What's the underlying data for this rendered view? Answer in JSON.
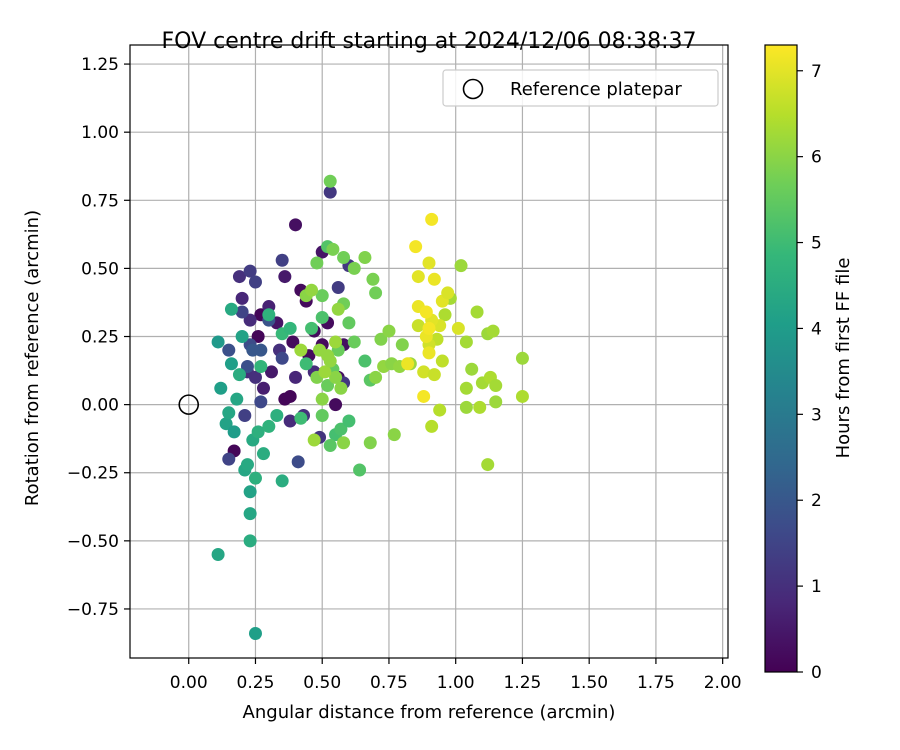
{
  "chart_data": {
    "type": "scatter",
    "title": "FOV centre drift starting at 2024/12/06 08:38:37",
    "xlabel": "Angular distance from reference (arcmin)",
    "ylabel": "Rotation from reference (arcmin)",
    "xlim": [
      -0.22,
      2.02
    ],
    "ylim": [
      -0.93,
      1.32
    ],
    "xticks": [
      0.0,
      0.25,
      0.5,
      0.75,
      1.0,
      1.25,
      1.5,
      1.75,
      2.0
    ],
    "xtick_labels": [
      "0.00",
      "0.25",
      "0.50",
      "0.75",
      "1.00",
      "1.25",
      "1.50",
      "1.75",
      "2.00"
    ],
    "yticks": [
      -0.75,
      -0.5,
      -0.25,
      0.0,
      0.25,
      0.5,
      0.75,
      1.0,
      1.25
    ],
    "ytick_labels": [
      "−0.75",
      "−0.50",
      "−0.25",
      "0.00",
      "0.25",
      "0.50",
      "0.75",
      "1.00",
      "1.25"
    ],
    "grid": true,
    "legend": {
      "position": "top-right",
      "entries": [
        "Reference platepar"
      ]
    },
    "reference": {
      "x": 0.0,
      "y": 0.0
    },
    "colorbar": {
      "label": "Hours from first FF file",
      "range": [
        0,
        7.3
      ],
      "ticks": [
        0,
        1,
        2,
        3,
        4,
        5,
        6,
        7
      ],
      "colormap": "viridis"
    },
    "colors": [
      "#440154",
      "#482878",
      "#3e4989",
      "#31688e",
      "#26828e",
      "#1f9e89",
      "#35b779",
      "#6ece58",
      "#b5de2b",
      "#fde725"
    ],
    "points": [
      {
        "x": 0.17,
        "y": -0.17,
        "h": 0.1
      },
      {
        "x": 0.26,
        "y": 0.25,
        "h": 0.1
      },
      {
        "x": 0.27,
        "y": 0.33,
        "h": 0.1
      },
      {
        "x": 0.36,
        "y": 0.02,
        "h": 0.1
      },
      {
        "x": 0.38,
        "y": 0.03,
        "h": 0.1
      },
      {
        "x": 0.39,
        "y": 0.23,
        "h": 0.2
      },
      {
        "x": 0.4,
        "y": 0.66,
        "h": 0.3
      },
      {
        "x": 0.42,
        "y": 0.42,
        "h": 0.2
      },
      {
        "x": 0.44,
        "y": 0.38,
        "h": 0.2
      },
      {
        "x": 0.45,
        "y": 0.18,
        "h": 0.2
      },
      {
        "x": 0.47,
        "y": 0.27,
        "h": 0.2
      },
      {
        "x": 0.5,
        "y": 0.22,
        "h": 0.2
      },
      {
        "x": 0.52,
        "y": 0.3,
        "h": 0.2
      },
      {
        "x": 0.55,
        "y": 0.0,
        "h": 0.2
      },
      {
        "x": 0.56,
        "y": 0.1,
        "h": 0.3
      },
      {
        "x": 0.58,
        "y": 0.22,
        "h": 0.3
      },
      {
        "x": 0.5,
        "y": 0.56,
        "h": 0.4
      },
      {
        "x": 0.36,
        "y": 0.47,
        "h": 0.5
      },
      {
        "x": 0.33,
        "y": 0.3,
        "h": 0.4
      },
      {
        "x": 0.31,
        "y": 0.12,
        "h": 0.5
      },
      {
        "x": 0.3,
        "y": 0.36,
        "h": 0.7
      },
      {
        "x": 0.28,
        "y": 0.06,
        "h": 0.6
      },
      {
        "x": 0.2,
        "y": 0.39,
        "h": 0.8
      },
      {
        "x": 0.22,
        "y": 0.12,
        "h": 0.9
      },
      {
        "x": 0.23,
        "y": 0.31,
        "h": 0.9
      },
      {
        "x": 0.19,
        "y": 0.47,
        "h": 1.0
      },
      {
        "x": 0.25,
        "y": 0.1,
        "h": 1.0
      },
      {
        "x": 0.34,
        "y": 0.2,
        "h": 1.0
      },
      {
        "x": 0.38,
        "y": -0.06,
        "h": 0.9
      },
      {
        "x": 0.4,
        "y": 0.1,
        "h": 0.8
      },
      {
        "x": 0.43,
        "y": -0.04,
        "h": 1.0
      },
      {
        "x": 0.47,
        "y": 0.12,
        "h": 0.9
      },
      {
        "x": 0.49,
        "y": -0.12,
        "h": 1.1
      },
      {
        "x": 0.53,
        "y": 0.78,
        "h": 1.2
      },
      {
        "x": 0.56,
        "y": 0.43,
        "h": 1.3
      },
      {
        "x": 0.58,
        "y": 0.08,
        "h": 1.2
      },
      {
        "x": 0.6,
        "y": 0.51,
        "h": 1.2
      },
      {
        "x": 0.35,
        "y": 0.53,
        "h": 1.4
      },
      {
        "x": 0.23,
        "y": 0.49,
        "h": 1.3
      },
      {
        "x": 0.25,
        "y": 0.45,
        "h": 1.4
      },
      {
        "x": 0.2,
        "y": 0.34,
        "h": 1.5
      },
      {
        "x": 0.21,
        "y": -0.04,
        "h": 1.4
      },
      {
        "x": 0.15,
        "y": -0.2,
        "h": 1.5
      },
      {
        "x": 0.27,
        "y": 0.01,
        "h": 1.6
      },
      {
        "x": 0.35,
        "y": 0.17,
        "h": 1.6
      },
      {
        "x": 0.41,
        "y": -0.21,
        "h": 1.7
      },
      {
        "x": 0.23,
        "y": 0.22,
        "h": 1.7
      },
      {
        "x": 0.22,
        "y": 0.14,
        "h": 1.8
      },
      {
        "x": 0.3,
        "y": 0.31,
        "h": 1.9
      },
      {
        "x": 0.15,
        "y": 0.2,
        "h": 1.8
      },
      {
        "x": 0.24,
        "y": 0.2,
        "h": 2.0
      },
      {
        "x": 0.27,
        "y": 0.2,
        "h": 2.0
      },
      {
        "x": 0.11,
        "y": 0.23,
        "h": 3.9
      },
      {
        "x": 0.12,
        "y": 0.06,
        "h": 4.1
      },
      {
        "x": 0.14,
        "y": -0.07,
        "h": 4.2
      },
      {
        "x": 0.15,
        "y": -0.03,
        "h": 4.3
      },
      {
        "x": 0.16,
        "y": 0.15,
        "h": 4.1
      },
      {
        "x": 0.16,
        "y": 0.35,
        "h": 4.4
      },
      {
        "x": 0.17,
        "y": -0.1,
        "h": 4.0
      },
      {
        "x": 0.18,
        "y": 0.02,
        "h": 4.3
      },
      {
        "x": 0.19,
        "y": 0.11,
        "h": 4.5
      },
      {
        "x": 0.2,
        "y": 0.25,
        "h": 4.2
      },
      {
        "x": 0.21,
        "y": -0.24,
        "h": 4.3
      },
      {
        "x": 0.22,
        "y": -0.22,
        "h": 4.4
      },
      {
        "x": 0.23,
        "y": -0.32,
        "h": 4.2
      },
      {
        "x": 0.23,
        "y": -0.4,
        "h": 4.3
      },
      {
        "x": 0.23,
        "y": -0.5,
        "h": 4.5
      },
      {
        "x": 0.11,
        "y": -0.55,
        "h": 4.3
      },
      {
        "x": 0.25,
        "y": -0.84,
        "h": 4.1
      },
      {
        "x": 0.25,
        "y": -0.27,
        "h": 4.6
      },
      {
        "x": 0.24,
        "y": -0.13,
        "h": 4.4
      },
      {
        "x": 0.26,
        "y": -0.1,
        "h": 4.6
      },
      {
        "x": 0.28,
        "y": -0.18,
        "h": 4.5
      },
      {
        "x": 0.3,
        "y": -0.08,
        "h": 4.7
      },
      {
        "x": 0.33,
        "y": -0.04,
        "h": 4.6
      },
      {
        "x": 0.35,
        "y": -0.28,
        "h": 4.5
      },
      {
        "x": 0.27,
        "y": 0.14,
        "h": 4.8
      },
      {
        "x": 0.3,
        "y": 0.33,
        "h": 4.7
      },
      {
        "x": 0.35,
        "y": 0.26,
        "h": 4.9
      },
      {
        "x": 0.38,
        "y": 0.28,
        "h": 4.8
      },
      {
        "x": 0.42,
        "y": -0.05,
        "h": 5.0
      },
      {
        "x": 0.44,
        "y": 0.15,
        "h": 5.0
      },
      {
        "x": 0.46,
        "y": 0.28,
        "h": 5.1
      },
      {
        "x": 0.5,
        "y": 0.32,
        "h": 5.2
      },
      {
        "x": 0.52,
        "y": 0.58,
        "h": 5.3
      },
      {
        "x": 0.55,
        "y": -0.11,
        "h": 5.1
      },
      {
        "x": 0.57,
        "y": -0.09,
        "h": 5.2
      },
      {
        "x": 0.6,
        "y": -0.06,
        "h": 5.1
      },
      {
        "x": 0.64,
        "y": -0.24,
        "h": 5.3
      },
      {
        "x": 0.66,
        "y": 0.16,
        "h": 5.2
      },
      {
        "x": 0.68,
        "y": 0.09,
        "h": 5.4
      },
      {
        "x": 0.53,
        "y": -0.15,
        "h": 5.4
      },
      {
        "x": 0.5,
        "y": -0.04,
        "h": 5.5
      },
      {
        "x": 0.52,
        "y": 0.07,
        "h": 5.6
      },
      {
        "x": 0.54,
        "y": 0.13,
        "h": 5.5
      },
      {
        "x": 0.56,
        "y": 0.2,
        "h": 5.6
      },
      {
        "x": 0.58,
        "y": 0.37,
        "h": 5.7
      },
      {
        "x": 0.6,
        "y": 0.3,
        "h": 5.5
      },
      {
        "x": 0.62,
        "y": 0.23,
        "h": 5.6
      },
      {
        "x": 0.48,
        "y": 0.52,
        "h": 5.7
      },
      {
        "x": 0.5,
        "y": 0.4,
        "h": 5.6
      },
      {
        "x": 0.53,
        "y": 0.82,
        "h": 5.7
      },
      {
        "x": 0.54,
        "y": 0.57,
        "h": 5.8
      },
      {
        "x": 0.58,
        "y": 0.54,
        "h": 5.7
      },
      {
        "x": 0.62,
        "y": 0.5,
        "h": 5.8
      },
      {
        "x": 0.66,
        "y": 0.54,
        "h": 5.9
      },
      {
        "x": 0.69,
        "y": 0.46,
        "h": 5.8
      },
      {
        "x": 0.7,
        "y": 0.41,
        "h": 5.7
      },
      {
        "x": 0.72,
        "y": 0.24,
        "h": 5.9
      },
      {
        "x": 0.75,
        "y": 0.27,
        "h": 6.0
      },
      {
        "x": 0.8,
        "y": 0.22,
        "h": 5.9
      },
      {
        "x": 0.77,
        "y": -0.11,
        "h": 6.0
      },
      {
        "x": 0.68,
        "y": -0.14,
        "h": 5.9
      },
      {
        "x": 0.7,
        "y": 0.1,
        "h": 6.0
      },
      {
        "x": 0.73,
        "y": 0.14,
        "h": 6.1
      },
      {
        "x": 0.76,
        "y": 0.15,
        "h": 6.0
      },
      {
        "x": 0.79,
        "y": 0.14,
        "h": 6.1
      },
      {
        "x": 0.44,
        "y": 0.4,
        "h": 6.0
      },
      {
        "x": 0.46,
        "y": 0.42,
        "h": 6.1
      },
      {
        "x": 0.48,
        "y": 0.1,
        "h": 5.9
      },
      {
        "x": 0.5,
        "y": 0.02,
        "h": 6.0
      },
      {
        "x": 0.52,
        "y": 0.18,
        "h": 6.1
      },
      {
        "x": 0.55,
        "y": 0.1,
        "h": 6.0
      },
      {
        "x": 0.56,
        "y": 0.35,
        "h": 6.1
      },
      {
        "x": 0.58,
        "y": -0.14,
        "h": 6.0
      },
      {
        "x": 0.47,
        "y": -0.13,
        "h": 6.2
      },
      {
        "x": 0.49,
        "y": 0.2,
        "h": 6.1
      },
      {
        "x": 0.51,
        "y": 0.12,
        "h": 6.2
      },
      {
        "x": 0.53,
        "y": 0.16,
        "h": 6.1
      },
      {
        "x": 0.55,
        "y": 0.23,
        "h": 6.2
      },
      {
        "x": 0.57,
        "y": 0.06,
        "h": 6.0
      },
      {
        "x": 0.42,
        "y": 0.2,
        "h": 6.2
      },
      {
        "x": 0.83,
        "y": 0.15,
        "h": 6.2
      },
      {
        "x": 0.98,
        "y": 0.39,
        "h": 6.3
      },
      {
        "x": 1.02,
        "y": 0.51,
        "h": 6.2
      },
      {
        "x": 1.04,
        "y": 0.23,
        "h": 6.3
      },
      {
        "x": 1.06,
        "y": 0.13,
        "h": 6.2
      },
      {
        "x": 1.04,
        "y": 0.06,
        "h": 6.3
      },
      {
        "x": 1.04,
        "y": -0.01,
        "h": 6.2
      },
      {
        "x": 1.08,
        "y": 0.34,
        "h": 6.3
      },
      {
        "x": 1.09,
        "y": -0.01,
        "h": 6.4
      },
      {
        "x": 1.1,
        "y": 0.08,
        "h": 6.3
      },
      {
        "x": 1.12,
        "y": 0.26,
        "h": 6.2
      },
      {
        "x": 1.12,
        "y": -0.22,
        "h": 6.3
      },
      {
        "x": 1.13,
        "y": 0.1,
        "h": 6.4
      },
      {
        "x": 1.14,
        "y": 0.27,
        "h": 6.3
      },
      {
        "x": 1.15,
        "y": 0.01,
        "h": 6.2
      },
      {
        "x": 1.15,
        "y": 0.07,
        "h": 6.3
      },
      {
        "x": 1.25,
        "y": 0.17,
        "h": 6.2
      },
      {
        "x": 1.25,
        "y": 0.03,
        "h": 6.4
      },
      {
        "x": 0.96,
        "y": 0.33,
        "h": 6.4
      },
      {
        "x": 0.94,
        "y": -0.02,
        "h": 6.5
      },
      {
        "x": 0.91,
        "y": -0.08,
        "h": 6.5
      },
      {
        "x": 0.93,
        "y": 0.24,
        "h": 6.6
      },
      {
        "x": 0.95,
        "y": 0.16,
        "h": 6.6
      },
      {
        "x": 0.86,
        "y": 0.29,
        "h": 6.7
      },
      {
        "x": 0.88,
        "y": 0.12,
        "h": 6.8
      },
      {
        "x": 0.9,
        "y": 0.22,
        "h": 6.8
      },
      {
        "x": 0.92,
        "y": 0.11,
        "h": 6.7
      },
      {
        "x": 0.94,
        "y": 0.29,
        "h": 6.9
      },
      {
        "x": 0.95,
        "y": 0.38,
        "h": 7.0
      },
      {
        "x": 0.97,
        "y": 0.41,
        "h": 6.9
      },
      {
        "x": 0.91,
        "y": 0.31,
        "h": 7.0
      },
      {
        "x": 0.89,
        "y": 0.25,
        "h": 7.1
      },
      {
        "x": 0.9,
        "y": 0.52,
        "h": 7.0
      },
      {
        "x": 0.92,
        "y": 0.46,
        "h": 7.1
      },
      {
        "x": 0.88,
        "y": 0.03,
        "h": 7.2
      },
      {
        "x": 0.86,
        "y": 0.36,
        "h": 7.1
      },
      {
        "x": 0.89,
        "y": 0.34,
        "h": 7.2
      },
      {
        "x": 0.9,
        "y": 0.19,
        "h": 7.1
      },
      {
        "x": 0.91,
        "y": 0.68,
        "h": 7.2
      },
      {
        "x": 0.85,
        "y": 0.58,
        "h": 7.2
      },
      {
        "x": 0.86,
        "y": 0.47,
        "h": 7.0
      },
      {
        "x": 0.82,
        "y": 0.15,
        "h": 7.1
      },
      {
        "x": 1.01,
        "y": 0.28,
        "h": 6.9
      },
      {
        "x": 0.9,
        "y": 0.28,
        "h": 7.2
      }
    ]
  }
}
